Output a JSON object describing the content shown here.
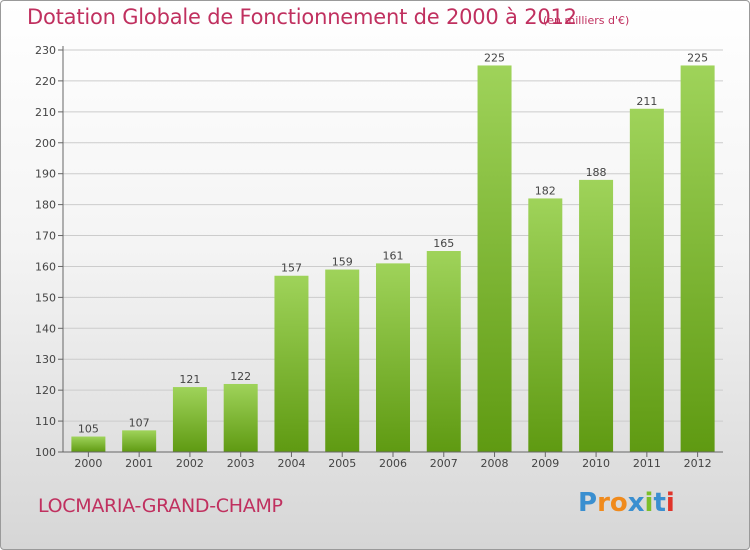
{
  "title": "Dotation Globale de Fonctionnement de 2000 à 2012",
  "subtitle": "(en milliers d'€)",
  "commune": "LOCMARIA-GRAND-CHAMP",
  "logo": {
    "letters": [
      "P",
      "r",
      "o",
      "x",
      "i",
      "t",
      "i"
    ]
  },
  "colors": {
    "title": "#c0305f",
    "bar_top": "#9fd35a",
    "bar_bottom": "#5f9a12",
    "grid": "#cccccc"
  },
  "chart_data": {
    "type": "bar",
    "title": "Dotation Globale de Fonctionnement de 2000 à 2012",
    "subtitle": "(en milliers d'€)",
    "xlabel": "",
    "ylabel": "",
    "categories": [
      "2000",
      "2001",
      "2002",
      "2003",
      "2004",
      "2005",
      "2006",
      "2007",
      "2008",
      "2009",
      "2010",
      "2011",
      "2012"
    ],
    "values": [
      105,
      107,
      121,
      122,
      157,
      159,
      161,
      165,
      225,
      182,
      188,
      211,
      225
    ],
    "ylim": [
      100,
      230
    ],
    "yticks": [
      100,
      110,
      120,
      130,
      140,
      150,
      160,
      170,
      180,
      190,
      200,
      210,
      220,
      230
    ],
    "grid": true,
    "data_labels": true
  }
}
